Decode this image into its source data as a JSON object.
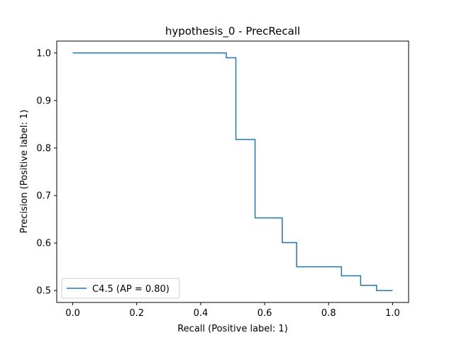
{
  "chart_data": {
    "type": "line",
    "title": "hypothesis_0 - PrecRecall",
    "xlabel": "Recall (Positive label: 1)",
    "ylabel": "Precision (Positive label: 1)",
    "xlim": [
      -0.05,
      1.05
    ],
    "ylim": [
      0.475,
      1.025
    ],
    "xticks": [
      0.0,
      0.2,
      0.4,
      0.6,
      0.8,
      1.0
    ],
    "xtick_labels": [
      "0.0",
      "0.2",
      "0.4",
      "0.6",
      "0.8",
      "1.0"
    ],
    "yticks": [
      0.5,
      0.6,
      0.7,
      0.8,
      0.9,
      1.0
    ],
    "ytick_labels": [
      "0.5",
      "0.6",
      "0.7",
      "0.8",
      "0.9",
      "1.0"
    ],
    "grid": false,
    "legend_position": "lower-left",
    "series": [
      {
        "name": "C4.5 (AP = 0.80)",
        "color": "#1f77b4",
        "drawstyle": "steps-post",
        "x": [
          0.0,
          0.48,
          0.48,
          0.51,
          0.51,
          0.57,
          0.57,
          0.655,
          0.655,
          0.7,
          0.7,
          0.84,
          0.84,
          0.9,
          0.9,
          0.95,
          0.95,
          1.0
        ],
        "y": [
          1.0,
          1.0,
          0.99,
          0.99,
          0.818,
          0.818,
          0.653,
          0.653,
          0.601,
          0.601,
          0.55,
          0.55,
          0.531,
          0.531,
          0.511,
          0.511,
          0.5,
          0.5
        ]
      }
    ]
  }
}
